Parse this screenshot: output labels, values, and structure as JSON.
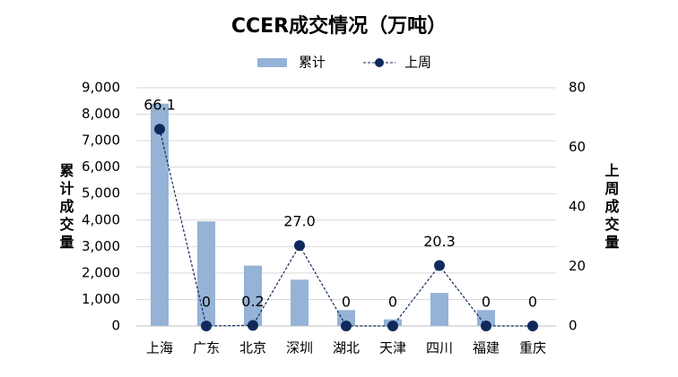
{
  "chart_data": {
    "type": "bar",
    "title": "CCER成交情况（万吨）",
    "categories": [
      "上海",
      "广东",
      "北京",
      "深圳",
      "湖北",
      "天津",
      "四川",
      "福建",
      "重庆"
    ],
    "series": [
      {
        "name": "累计",
        "type": "bar",
        "color": "#95b3d7",
        "values": [
          8400,
          3950,
          2280,
          1750,
          600,
          250,
          1250,
          600,
          0
        ]
      },
      {
        "name": "上周",
        "type": "line",
        "axis": "y2",
        "color": "#0f2a5a",
        "values": [
          66.1,
          0,
          0.2,
          27.0,
          0,
          0,
          20.3,
          0,
          0
        ],
        "value_labels": [
          "66.1",
          "0",
          "0.2",
          "27.0",
          "0",
          "0",
          "20.3",
          "0",
          "0"
        ]
      }
    ],
    "ylabel": "累计成交量",
    "y2label": "上周成交量",
    "ylim": [
      0,
      9000
    ],
    "yticks": [
      0,
      {
        "value": 1000,
        "label": "1,000"
      },
      {
        "value": 2000,
        "label": "2,000"
      },
      {
        "value": 3000,
        "label": "3,000"
      },
      {
        "value": 4000,
        "label": "4,000"
      },
      {
        "value": 5000,
        "label": "5,000"
      },
      {
        "value": 6000,
        "label": "6,000"
      },
      {
        "value": 7000,
        "label": "7,000"
      },
      {
        "value": 8000,
        "label": "8,000"
      },
      {
        "value": 9000,
        "label": "9,000"
      }
    ],
    "y2lim": [
      0,
      80
    ],
    "y2ticks": [
      0,
      20,
      40,
      60,
      80
    ],
    "grid": true,
    "legend": "top"
  }
}
